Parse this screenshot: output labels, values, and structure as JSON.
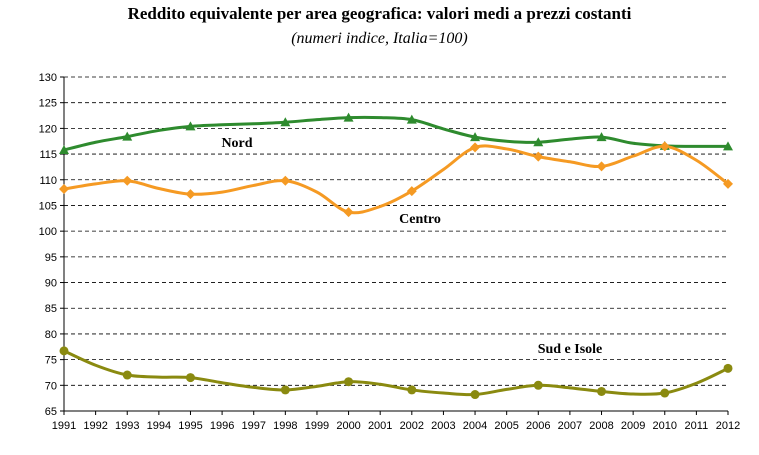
{
  "chart_data": {
    "type": "line",
    "title": "Reddito equivalente per area geografica: valori medi a prezzi costanti",
    "subtitle": "(numeri indice, Italia=100)",
    "xlabel": "",
    "ylabel": "",
    "ylim": [
      65,
      130
    ],
    "yticks": [
      "65",
      "70",
      "75",
      "80",
      "85",
      "90",
      "95",
      "100",
      "105",
      "110",
      "115",
      "120",
      "125",
      "130"
    ],
    "categories": [
      "1991",
      "1992",
      "1993",
      "1994",
      "1995",
      "1996",
      "1997",
      "1998",
      "1999",
      "2000",
      "2001",
      "2002",
      "2003",
      "2004",
      "2005",
      "2006",
      "2007",
      "2008",
      "2009",
      "2010",
      "2011",
      "2012"
    ],
    "marker_years": [
      "1991",
      "1993",
      "1995",
      "1998",
      "2000",
      "2002",
      "2004",
      "2006",
      "2008",
      "2010",
      "2012"
    ],
    "grid": "horizontal dashed",
    "series": [
      {
        "name": "Nord",
        "color": "#2e8b2e",
        "marker": "triangle",
        "values": [
          115.8,
          117.3,
          118.4,
          119.6,
          120.4,
          120.7,
          120.9,
          121.2,
          121.7,
          122.1,
          122.1,
          121.7,
          119.9,
          118.3,
          117.5,
          117.3,
          117.9,
          118.3,
          117.1,
          116.6,
          116.5,
          116.5
        ]
      },
      {
        "name": "Centro",
        "color": "#f59a23",
        "marker": "diamond",
        "values": [
          108.2,
          109.2,
          109.8,
          108.3,
          107.2,
          107.6,
          108.9,
          109.8,
          107.6,
          103.7,
          104.8,
          107.8,
          112.0,
          116.3,
          116.0,
          114.5,
          113.5,
          112.6,
          114.6,
          116.5,
          113.8,
          109.2
        ]
      },
      {
        "name": "Sud e Isole",
        "color": "#8a8a10",
        "marker": "circle",
        "values": [
          76.7,
          73.9,
          72.0,
          71.6,
          71.5,
          70.5,
          69.6,
          69.1,
          69.8,
          70.7,
          70.2,
          69.1,
          68.5,
          68.2,
          69.2,
          70.0,
          69.5,
          68.8,
          68.3,
          68.5,
          70.4,
          73.3
        ]
      }
    ]
  }
}
